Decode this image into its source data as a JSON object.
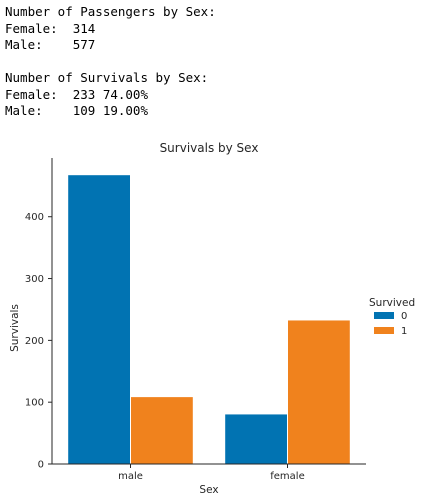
{
  "console_output": {
    "lines": [
      "Number of Passengers by Sex:",
      "Female:  314",
      "Male:    577",
      "",
      "Number of Survivals by Sex:",
      "Female:  233 74.00%",
      "Male:    109 19.00%"
    ]
  },
  "chart_data": {
    "type": "bar",
    "title": "Survivals by Sex",
    "xlabel": "Sex",
    "ylabel": "Survivals",
    "categories": [
      "male",
      "female"
    ],
    "series": [
      {
        "name": "0",
        "values": [
          468,
          81
        ],
        "color": "#0173b2"
      },
      {
        "name": "1",
        "values": [
          109,
          233
        ],
        "color": "#f0821d"
      }
    ],
    "legend_title": "Survived",
    "legend_position": "right",
    "ylim": [
      0,
      495
    ],
    "yticks": [
      0,
      100,
      200,
      300,
      400
    ],
    "grid": false
  }
}
